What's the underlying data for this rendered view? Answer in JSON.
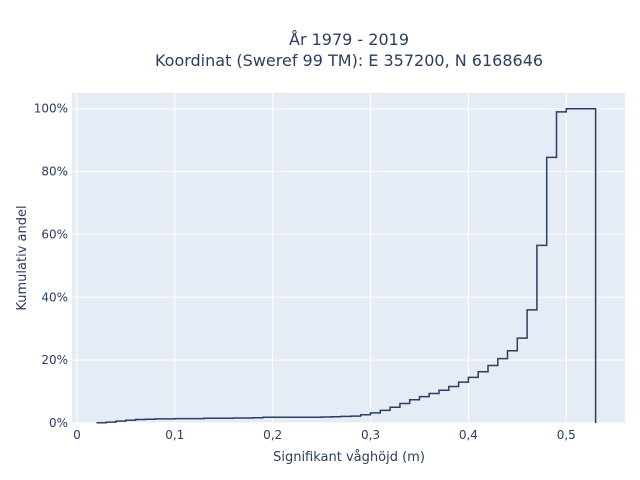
{
  "chart_data": {
    "type": "line",
    "line_shape": "step",
    "title_lines": [
      "År 1979 - 2019",
      "Koordinat (Sweref 99 TM): E 357200, N 6168646"
    ],
    "xlabel": "Signifikant våghöjd (m)",
    "ylabel": "Kumulativ andel",
    "xlim": [
      -0.005,
      0.56
    ],
    "ylim": [
      0,
      1.05
    ],
    "x_ticks": [
      0,
      0.1,
      0.2,
      0.3,
      0.4,
      0.5
    ],
    "x_tick_labels": [
      "0",
      "0,1",
      "0,2",
      "0,3",
      "0,4",
      "0,5"
    ],
    "y_ticks": [
      0,
      0.2,
      0.4,
      0.6,
      0.8,
      1.0
    ],
    "y_tick_labels": [
      "0%",
      "20%",
      "40%",
      "60%",
      "80%",
      "100%"
    ],
    "grid": true,
    "background": "#e5ecf6",
    "line_color": "#2a3f5f",
    "series": [
      {
        "x": [
          0.02,
          0.03,
          0.04,
          0.05,
          0.06,
          0.07,
          0.08,
          0.09,
          0.1,
          0.11,
          0.12,
          0.13,
          0.14,
          0.15,
          0.16,
          0.17,
          0.18,
          0.19,
          0.2,
          0.21,
          0.22,
          0.23,
          0.24,
          0.25,
          0.26,
          0.27,
          0.28,
          0.29,
          0.3,
          0.31,
          0.32,
          0.33,
          0.34,
          0.35,
          0.36,
          0.37,
          0.38,
          0.39,
          0.4,
          0.41,
          0.42,
          0.43,
          0.44,
          0.45,
          0.46,
          0.47,
          0.48,
          0.49,
          0.5,
          0.51,
          0.52,
          0.53
        ],
        "y": [
          0.001,
          0.003,
          0.006,
          0.009,
          0.011,
          0.012,
          0.013,
          0.013,
          0.014,
          0.014,
          0.014,
          0.015,
          0.015,
          0.015,
          0.016,
          0.016,
          0.017,
          0.018,
          0.018,
          0.018,
          0.018,
          0.018,
          0.018,
          0.019,
          0.02,
          0.021,
          0.022,
          0.026,
          0.032,
          0.04,
          0.05,
          0.062,
          0.074,
          0.084,
          0.094,
          0.104,
          0.116,
          0.13,
          0.145,
          0.163,
          0.183,
          0.205,
          0.23,
          0.27,
          0.36,
          0.565,
          0.845,
          0.99,
          1.0,
          1.0,
          1.0,
          0
        ]
      }
    ]
  }
}
